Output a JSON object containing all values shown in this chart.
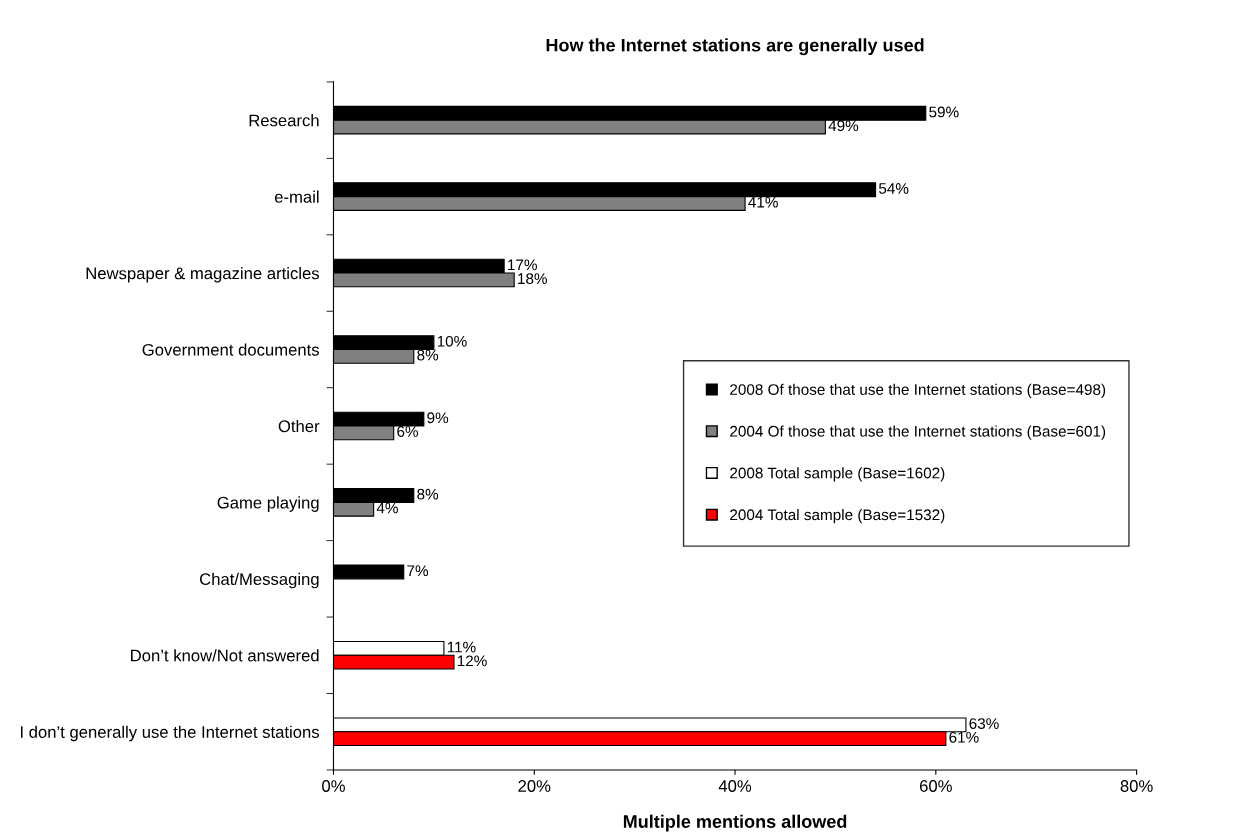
{
  "chart_data": {
    "type": "bar",
    "orientation": "horizontal",
    "title": "How the Internet stations are generally used",
    "xlabel": "Multiple mentions allowed",
    "categories": [
      "Research",
      "e-mail",
      "Newspaper & magazine articles",
      "Government documents",
      "Other",
      "Game playing",
      "Chat/Messaging",
      "Don’t know/Not answered",
      "I don’t generally use the Internet stations"
    ],
    "series": [
      {
        "name": "2008 Of those that use the Internet stations (Base=498)",
        "color": "#000000",
        "values": [
          59,
          54,
          17,
          10,
          9,
          8,
          7,
          null,
          null
        ],
        "value_labels": [
          "59%",
          "54%",
          "17%",
          "10%",
          "9%",
          "8%",
          "7%",
          null,
          null
        ]
      },
      {
        "name": "2004 Of those that use the Internet stations (Base=601)",
        "color": "#808080",
        "values": [
          49,
          41,
          18,
          8,
          6,
          4,
          null,
          null,
          null
        ],
        "value_labels": [
          "49%",
          "41%",
          "18%",
          "8%",
          "6%",
          "4%",
          null,
          null,
          null
        ]
      },
      {
        "name": "2008 Total sample (Base=1602)",
        "color": "#ffffff",
        "values": [
          null,
          null,
          null,
          null,
          null,
          null,
          null,
          11,
          63
        ],
        "value_labels": [
          null,
          null,
          null,
          null,
          null,
          null,
          null,
          "11%",
          "63%"
        ]
      },
      {
        "name": "2004 Total sample (Base=1532)",
        "color": "#ff0000",
        "values": [
          null,
          null,
          null,
          null,
          null,
          null,
          null,
          12,
          61
        ],
        "value_labels": [
          null,
          null,
          null,
          null,
          null,
          null,
          null,
          "12%",
          "61%"
        ]
      }
    ],
    "xlim": [
      0,
      80
    ],
    "xticks": [
      {
        "value": 0,
        "label": "0%"
      },
      {
        "value": 20,
        "label": "20%"
      },
      {
        "value": 40,
        "label": "40%"
      },
      {
        "value": 60,
        "label": "60%"
      },
      {
        "value": 80,
        "label": "80%"
      }
    ],
    "grid": false,
    "legend": "center right"
  }
}
